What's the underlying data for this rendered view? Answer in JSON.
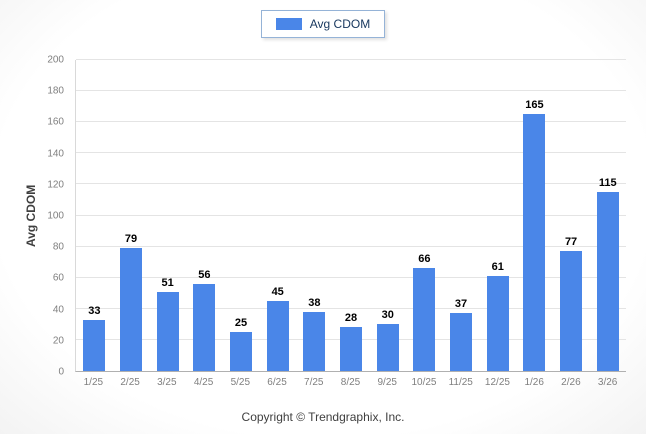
{
  "legend": {
    "label": "Avg CDOM",
    "swatch_color": "#4a86e8"
  },
  "y_axis": {
    "title": "Avg CDOM"
  },
  "footer": {
    "text": "Copyright © Trendgraphix, Inc."
  },
  "chart_data": {
    "type": "bar",
    "categories": [
      "1/25",
      "2/25",
      "3/25",
      "4/25",
      "5/25",
      "6/25",
      "7/25",
      "8/25",
      "9/25",
      "10/25",
      "11/25",
      "12/25",
      "1/26",
      "2/26",
      "3/26"
    ],
    "values": [
      33,
      79,
      51,
      56,
      25,
      45,
      38,
      28,
      30,
      66,
      37,
      61,
      165,
      77,
      115
    ],
    "title": "",
    "xlabel": "",
    "ylabel": "Avg CDOM",
    "ylim": [
      0,
      200
    ],
    "ytick_step": 20,
    "bar_color": "#4a86e8",
    "grid": true,
    "legend_position": "top"
  }
}
